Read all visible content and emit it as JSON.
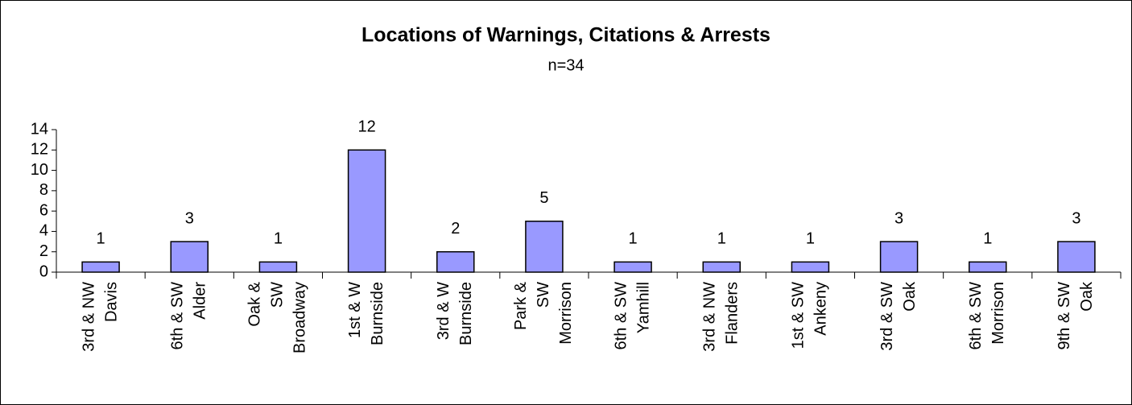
{
  "chart_data": {
    "type": "bar",
    "title": "Locations of Warnings, Citations & Arrests",
    "subtitle": "n=34",
    "categories": [
      [
        "3rd & NW",
        "Davis"
      ],
      [
        "6th & SW",
        "Alder"
      ],
      [
        "Oak &",
        "SW",
        "Broadway"
      ],
      [
        "1st & W",
        "Burnside"
      ],
      [
        "3rd & W",
        "Burnside"
      ],
      [
        "Park &",
        "SW",
        "Morrison"
      ],
      [
        "6th & SW",
        "Yamhill"
      ],
      [
        "3rd & NW",
        "Flanders"
      ],
      [
        "1st & SW",
        "Ankeny"
      ],
      [
        "3rd & SW",
        "Oak"
      ],
      [
        "6th & SW",
        "Morrison"
      ],
      [
        "9th & SW",
        "Oak"
      ]
    ],
    "values": [
      1,
      3,
      1,
      12,
      2,
      5,
      1,
      1,
      1,
      3,
      1,
      3
    ],
    "color": "#9999ff",
    "ylim": [
      0,
      14
    ],
    "yticks": [
      0,
      2,
      4,
      6,
      8,
      10,
      12,
      14
    ],
    "grid": false
  }
}
